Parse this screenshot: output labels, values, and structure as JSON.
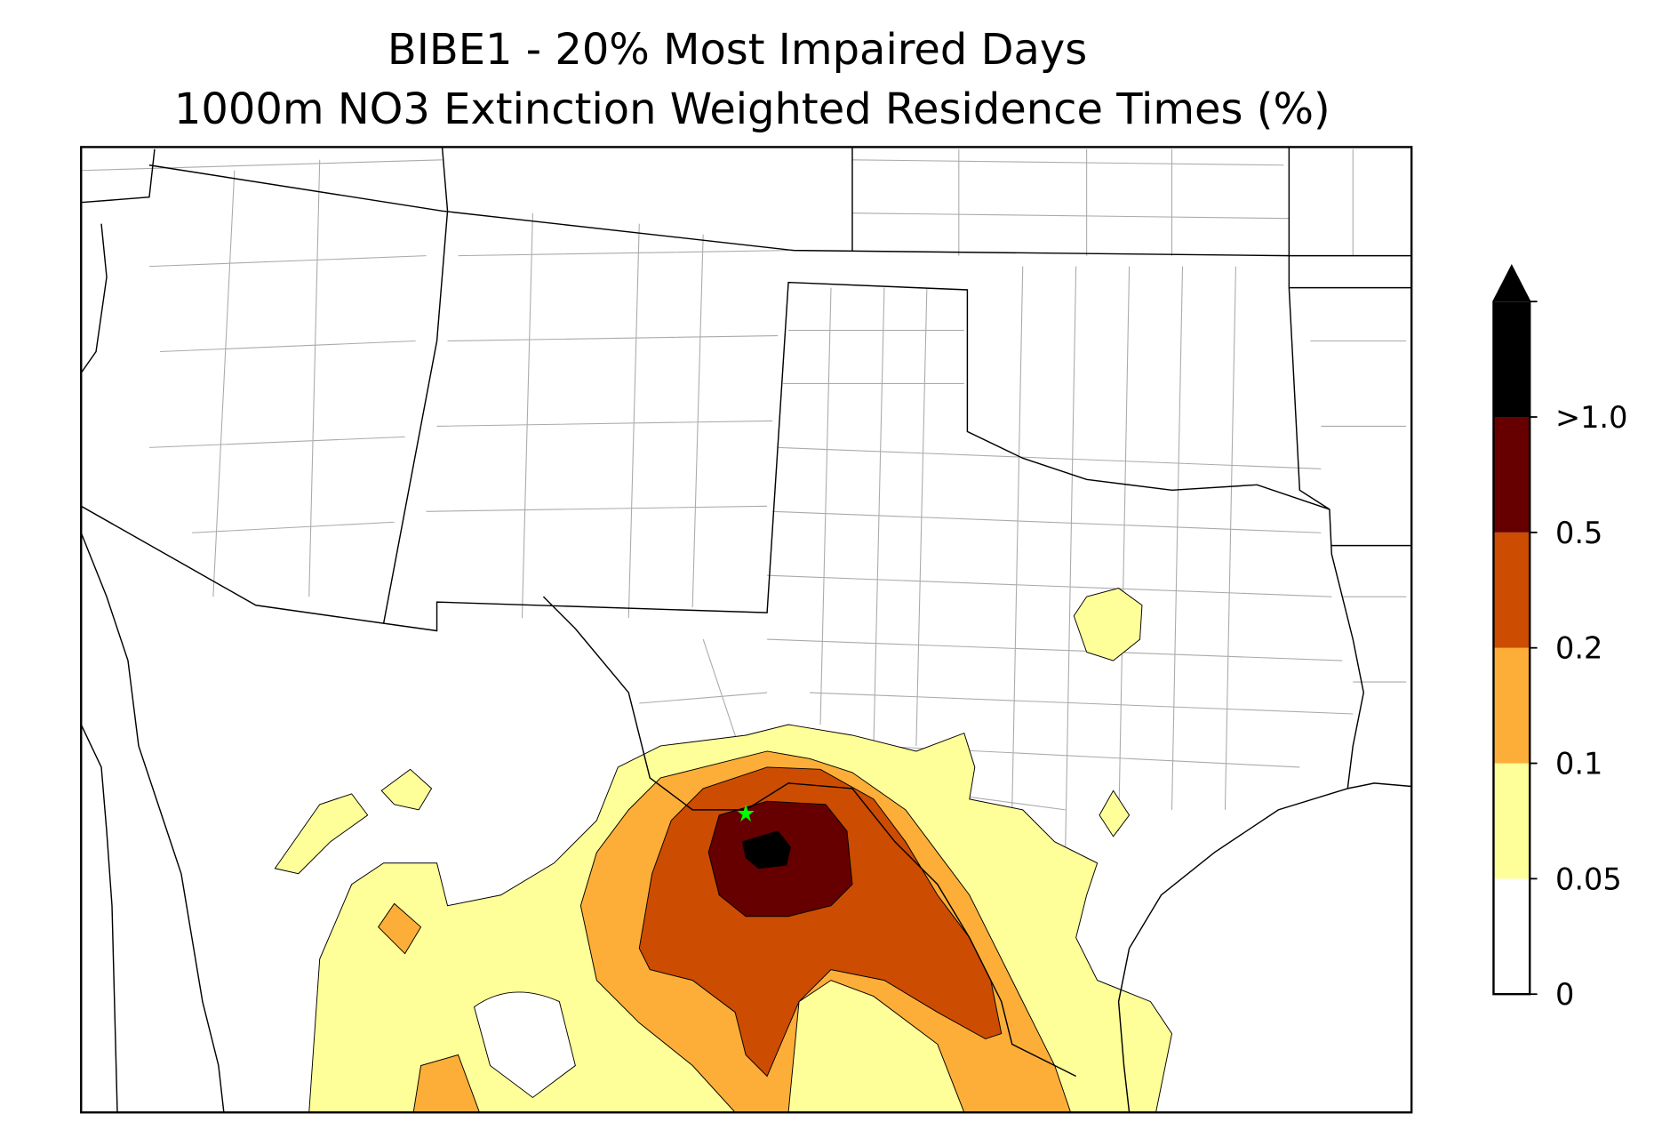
{
  "title": [
    "BIBE1 - 20% Most Impaired Days",
    "1000m NO3 Extinction Weighted Residence Times (%)"
  ],
  "colorbar": {
    "labels": [
      "0",
      "0.05",
      "0.1",
      "0.2",
      "0.5",
      ">1.0"
    ],
    "colors": [
      "#ffffff",
      "#ffff99",
      "#fdae38",
      "#cc4c02",
      "#660000",
      "#000000"
    ]
  }
}
